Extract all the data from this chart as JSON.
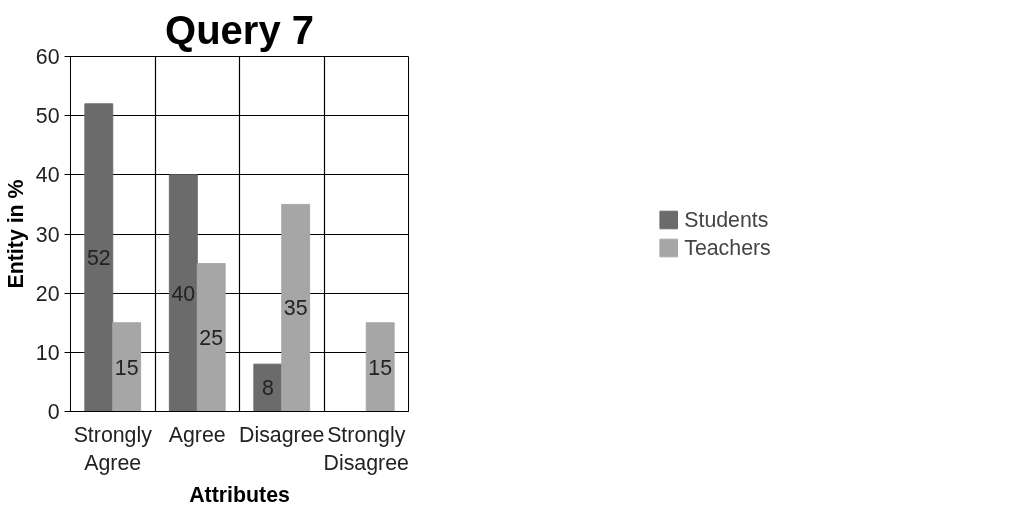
{
  "chart_data": {
    "type": "bar",
    "title": "Query 7",
    "xlabel": "Attributes",
    "ylabel": "Entity in %",
    "categories": [
      "Strongly Agree",
      "Agree",
      "Disagree",
      "Strongly Disagree"
    ],
    "series": [
      {
        "name": "Students",
        "color": "#6b6b6b",
        "values": [
          52,
          40,
          8,
          null
        ]
      },
      {
        "name": "Teachers",
        "color": "#a6a6a6",
        "values": [
          15,
          25,
          35,
          15
        ]
      }
    ],
    "ylim": [
      0,
      60
    ],
    "yticks": [
      0,
      10,
      20,
      30,
      40,
      50,
      60
    ],
    "grid": true,
    "legend": "right",
    "data_labels": true
  }
}
